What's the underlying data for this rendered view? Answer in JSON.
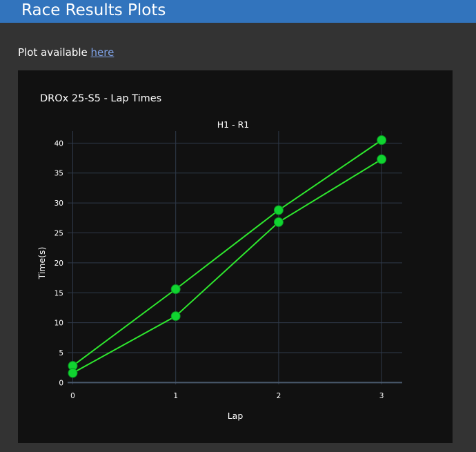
{
  "header": {
    "title": "Race Results Plots"
  },
  "note": {
    "prefix": "Plot available ",
    "link_label": "here"
  },
  "chart_data": {
    "type": "line",
    "title": "DROx 25-S5 - Lap Times",
    "subtitle": "H1 - R1",
    "xlabel": "Lap",
    "ylabel": "Time(s)",
    "x": [
      0,
      1,
      2,
      3
    ],
    "x_ticks": [
      "0",
      "1",
      "2",
      "3"
    ],
    "y_ticks": [
      "0",
      "5",
      "10",
      "15",
      "20",
      "25",
      "30",
      "35",
      "40"
    ],
    "xlim": [
      -0.05,
      3.2
    ],
    "ylim": [
      -0.3,
      42
    ],
    "grid": true,
    "series": [
      {
        "values": [
          2.8,
          15.6,
          28.8,
          40.5
        ],
        "color": "#2ee82e"
      },
      {
        "values": [
          1.6,
          11.1,
          26.8,
          37.3
        ],
        "color": "#2ee82e"
      }
    ],
    "colors": {
      "background": "#111111",
      "grid": "#2f3a4a",
      "line": "#2ee82e",
      "marker": "#10d430"
    }
  }
}
